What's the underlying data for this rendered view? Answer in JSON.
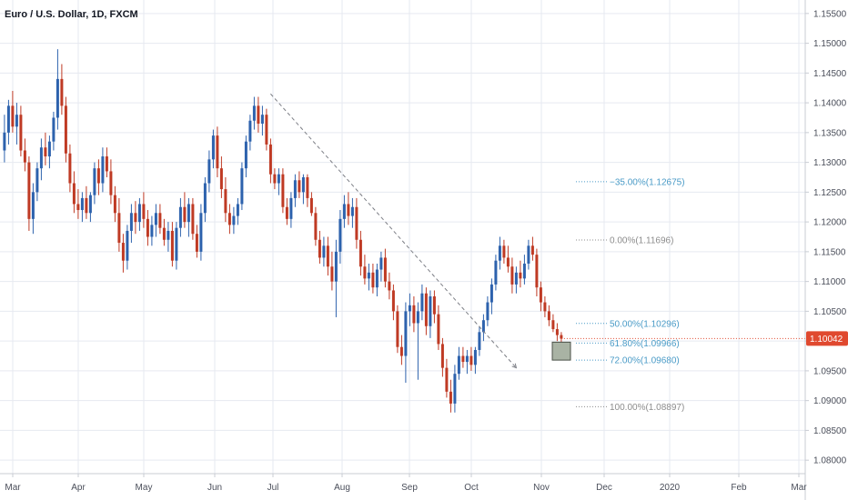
{
  "header": {
    "title": "Euro / U.S. Dollar, 1D, FXCM"
  },
  "price_badge": {
    "value": "1.10042",
    "color": "#e0492f"
  },
  "colors": {
    "up": "#2d62ad",
    "down": "#bf3a24",
    "fib_blue": "#4a9bc7",
    "fib_gray": "#8c8c8c",
    "box_fill": "#a9b3a4",
    "trendline": "#7d7f86"
  },
  "chart_data": {
    "type": "candlestick",
    "title": "Euro / U.S. Dollar, 1D, FXCM",
    "ylim": [
      1.0785,
      1.1565
    ],
    "y_ticks": [
      "1.15500",
      "1.15000",
      "1.14500",
      "1.14000",
      "1.13500",
      "1.13000",
      "1.12500",
      "1.12000",
      "1.11500",
      "1.11000",
      "1.10500",
      "1.10000",
      "1.09500",
      "1.09000",
      "1.08500",
      "1.08000"
    ],
    "x_ticks": [
      "Mar",
      "Apr",
      "May",
      "Jun",
      "Jul",
      "Aug",
      "Sep",
      "Oct",
      "Nov",
      "Dec",
      "2020",
      "Feb",
      "Mar"
    ],
    "grid": true,
    "last_price": 1.10042,
    "ohlc": [
      {
        "t": 1,
        "o": 1.132,
        "h": 1.138,
        "l": 1.13,
        "c": 1.135
      },
      {
        "t": 2,
        "o": 1.135,
        "h": 1.1405,
        "l": 1.133,
        "c": 1.1395
      },
      {
        "t": 3,
        "o": 1.1395,
        "h": 1.142,
        "l": 1.135,
        "c": 1.136
      },
      {
        "t": 4,
        "o": 1.136,
        "h": 1.14,
        "l": 1.133,
        "c": 1.138
      },
      {
        "t": 5,
        "o": 1.138,
        "h": 1.1395,
        "l": 1.131,
        "c": 1.132
      },
      {
        "t": 6,
        "o": 1.132,
        "h": 1.134,
        "l": 1.1285,
        "c": 1.13
      },
      {
        "t": 7,
        "o": 1.13,
        "h": 1.131,
        "l": 1.1185,
        "c": 1.1205
      },
      {
        "t": 8,
        "o": 1.1205,
        "h": 1.1265,
        "l": 1.118,
        "c": 1.125
      },
      {
        "t": 9,
        "o": 1.125,
        "h": 1.13,
        "l": 1.1235,
        "c": 1.129
      },
      {
        "t": 10,
        "o": 1.129,
        "h": 1.134,
        "l": 1.127,
        "c": 1.1325
      },
      {
        "t": 11,
        "o": 1.1325,
        "h": 1.135,
        "l": 1.1295,
        "c": 1.131
      },
      {
        "t": 12,
        "o": 1.131,
        "h": 1.1345,
        "l": 1.129,
        "c": 1.1335
      },
      {
        "t": 13,
        "o": 1.1335,
        "h": 1.1385,
        "l": 1.132,
        "c": 1.1375
      },
      {
        "t": 14,
        "o": 1.1375,
        "h": 1.149,
        "l": 1.1355,
        "c": 1.144
      },
      {
        "t": 15,
        "o": 1.144,
        "h": 1.1465,
        "l": 1.138,
        "c": 1.1395
      },
      {
        "t": 16,
        "o": 1.1395,
        "h": 1.141,
        "l": 1.13,
        "c": 1.1315
      },
      {
        "t": 17,
        "o": 1.1315,
        "h": 1.133,
        "l": 1.125,
        "c": 1.1265
      },
      {
        "t": 18,
        "o": 1.1265,
        "h": 1.1285,
        "l": 1.1215,
        "c": 1.123
      },
      {
        "t": 19,
        "o": 1.123,
        "h": 1.1255,
        "l": 1.1205,
        "c": 1.122
      },
      {
        "t": 20,
        "o": 1.122,
        "h": 1.125,
        "l": 1.12,
        "c": 1.124
      },
      {
        "t": 21,
        "o": 1.124,
        "h": 1.126,
        "l": 1.1205,
        "c": 1.1215
      },
      {
        "t": 22,
        "o": 1.1215,
        "h": 1.125,
        "l": 1.12,
        "c": 1.1245
      },
      {
        "t": 23,
        "o": 1.1245,
        "h": 1.13,
        "l": 1.123,
        "c": 1.129
      },
      {
        "t": 24,
        "o": 1.129,
        "h": 1.1305,
        "l": 1.1245,
        "c": 1.1265
      },
      {
        "t": 25,
        "o": 1.1265,
        "h": 1.1325,
        "l": 1.125,
        "c": 1.131
      },
      {
        "t": 26,
        "o": 1.131,
        "h": 1.1325,
        "l": 1.1275,
        "c": 1.1285
      },
      {
        "t": 27,
        "o": 1.1285,
        "h": 1.1305,
        "l": 1.123,
        "c": 1.1245
      },
      {
        "t": 28,
        "o": 1.1245,
        "h": 1.126,
        "l": 1.12,
        "c": 1.1215
      },
      {
        "t": 29,
        "o": 1.1215,
        "h": 1.124,
        "l": 1.115,
        "c": 1.1165
      },
      {
        "t": 30,
        "o": 1.1165,
        "h": 1.118,
        "l": 1.1115,
        "c": 1.1135
      },
      {
        "t": 31,
        "o": 1.1135,
        "h": 1.1195,
        "l": 1.112,
        "c": 1.1185
      },
      {
        "t": 32,
        "o": 1.1185,
        "h": 1.123,
        "l": 1.1165,
        "c": 1.1215
      },
      {
        "t": 33,
        "o": 1.1215,
        "h": 1.1235,
        "l": 1.118,
        "c": 1.12
      },
      {
        "t": 34,
        "o": 1.12,
        "h": 1.124,
        "l": 1.1185,
        "c": 1.123
      },
      {
        "t": 35,
        "o": 1.123,
        "h": 1.125,
        "l": 1.119,
        "c": 1.1205
      },
      {
        "t": 36,
        "o": 1.1205,
        "h": 1.122,
        "l": 1.116,
        "c": 1.1175
      },
      {
        "t": 37,
        "o": 1.1175,
        "h": 1.121,
        "l": 1.116,
        "c": 1.1195
      },
      {
        "t": 38,
        "o": 1.1195,
        "h": 1.123,
        "l": 1.1175,
        "c": 1.1215
      },
      {
        "t": 39,
        "o": 1.1215,
        "h": 1.123,
        "l": 1.118,
        "c": 1.119
      },
      {
        "t": 40,
        "o": 1.119,
        "h": 1.1205,
        "l": 1.116,
        "c": 1.117
      },
      {
        "t": 41,
        "o": 1.117,
        "h": 1.12,
        "l": 1.115,
        "c": 1.1185
      },
      {
        "t": 42,
        "o": 1.1185,
        "h": 1.12,
        "l": 1.1125,
        "c": 1.1135
      },
      {
        "t": 43,
        "o": 1.1135,
        "h": 1.12,
        "l": 1.112,
        "c": 1.119
      },
      {
        "t": 44,
        "o": 1.119,
        "h": 1.124,
        "l": 1.1175,
        "c": 1.1225
      },
      {
        "t": 45,
        "o": 1.1225,
        "h": 1.125,
        "l": 1.119,
        "c": 1.12
      },
      {
        "t": 46,
        "o": 1.12,
        "h": 1.124,
        "l": 1.1175,
        "c": 1.123
      },
      {
        "t": 47,
        "o": 1.123,
        "h": 1.124,
        "l": 1.117,
        "c": 1.118
      },
      {
        "t": 48,
        "o": 1.118,
        "h": 1.1195,
        "l": 1.114,
        "c": 1.115
      },
      {
        "t": 49,
        "o": 1.115,
        "h": 1.123,
        "l": 1.1135,
        "c": 1.1215
      },
      {
        "t": 50,
        "o": 1.1215,
        "h": 1.1275,
        "l": 1.12,
        "c": 1.1265
      },
      {
        "t": 51,
        "o": 1.1265,
        "h": 1.132,
        "l": 1.125,
        "c": 1.1305
      },
      {
        "t": 52,
        "o": 1.1305,
        "h": 1.1355,
        "l": 1.129,
        "c": 1.1345
      },
      {
        "t": 53,
        "o": 1.1345,
        "h": 1.136,
        "l": 1.1275,
        "c": 1.129
      },
      {
        "t": 54,
        "o": 1.129,
        "h": 1.131,
        "l": 1.124,
        "c": 1.1255
      },
      {
        "t": 55,
        "o": 1.1255,
        "h": 1.1275,
        "l": 1.12,
        "c": 1.1215
      },
      {
        "t": 56,
        "o": 1.1215,
        "h": 1.123,
        "l": 1.118,
        "c": 1.1195
      },
      {
        "t": 57,
        "o": 1.1195,
        "h": 1.1225,
        "l": 1.118,
        "c": 1.121
      },
      {
        "t": 58,
        "o": 1.121,
        "h": 1.124,
        "l": 1.1195,
        "c": 1.123
      },
      {
        "t": 59,
        "o": 1.123,
        "h": 1.13,
        "l": 1.122,
        "c": 1.129
      },
      {
        "t": 60,
        "o": 1.129,
        "h": 1.1345,
        "l": 1.1275,
        "c": 1.1335
      },
      {
        "t": 61,
        "o": 1.1335,
        "h": 1.138,
        "l": 1.132,
        "c": 1.137
      },
      {
        "t": 62,
        "o": 1.137,
        "h": 1.141,
        "l": 1.1355,
        "c": 1.1395
      },
      {
        "t": 63,
        "o": 1.1395,
        "h": 1.141,
        "l": 1.135,
        "c": 1.1365
      },
      {
        "t": 64,
        "o": 1.1365,
        "h": 1.1395,
        "l": 1.1345,
        "c": 1.138
      },
      {
        "t": 65,
        "o": 1.138,
        "h": 1.139,
        "l": 1.132,
        "c": 1.133
      },
      {
        "t": 66,
        "o": 1.133,
        "h": 1.134,
        "l": 1.1265,
        "c": 1.128
      },
      {
        "t": 67,
        "o": 1.128,
        "h": 1.129,
        "l": 1.1255,
        "c": 1.1265
      },
      {
        "t": 68,
        "o": 1.1265,
        "h": 1.129,
        "l": 1.1245,
        "c": 1.128
      },
      {
        "t": 69,
        "o": 1.128,
        "h": 1.129,
        "l": 1.1215,
        "c": 1.1225
      },
      {
        "t": 70,
        "o": 1.1225,
        "h": 1.124,
        "l": 1.1195,
        "c": 1.1205
      },
      {
        "t": 71,
        "o": 1.1205,
        "h": 1.125,
        "l": 1.119,
        "c": 1.124
      },
      {
        "t": 72,
        "o": 1.124,
        "h": 1.128,
        "l": 1.1225,
        "c": 1.127
      },
      {
        "t": 73,
        "o": 1.127,
        "h": 1.1285,
        "l": 1.124,
        "c": 1.125
      },
      {
        "t": 74,
        "o": 1.125,
        "h": 1.128,
        "l": 1.123,
        "c": 1.1275
      },
      {
        "t": 75,
        "o": 1.1275,
        "h": 1.128,
        "l": 1.1225,
        "c": 1.124
      },
      {
        "t": 76,
        "o": 1.124,
        "h": 1.125,
        "l": 1.121,
        "c": 1.1215
      },
      {
        "t": 77,
        "o": 1.1215,
        "h": 1.1225,
        "l": 1.116,
        "c": 1.117
      },
      {
        "t": 78,
        "o": 1.117,
        "h": 1.1185,
        "l": 1.113,
        "c": 1.114
      },
      {
        "t": 79,
        "o": 1.114,
        "h": 1.1175,
        "l": 1.1125,
        "c": 1.116
      },
      {
        "t": 80,
        "o": 1.116,
        "h": 1.1175,
        "l": 1.111,
        "c": 1.1125
      },
      {
        "t": 81,
        "o": 1.1125,
        "h": 1.115,
        "l": 1.1085,
        "c": 1.11
      },
      {
        "t": 82,
        "o": 1.11,
        "h": 1.117,
        "l": 1.104,
        "c": 1.115
      },
      {
        "t": 83,
        "o": 1.115,
        "h": 1.122,
        "l": 1.113,
        "c": 1.1205
      },
      {
        "t": 84,
        "o": 1.1205,
        "h": 1.1245,
        "l": 1.119,
        "c": 1.123
      },
      {
        "t": 85,
        "o": 1.123,
        "h": 1.125,
        "l": 1.1195,
        "c": 1.121
      },
      {
        "t": 86,
        "o": 1.121,
        "h": 1.124,
        "l": 1.119,
        "c": 1.1225
      },
      {
        "t": 87,
        "o": 1.1225,
        "h": 1.124,
        "l": 1.1155,
        "c": 1.117
      },
      {
        "t": 88,
        "o": 1.117,
        "h": 1.1185,
        "l": 1.111,
        "c": 1.1125
      },
      {
        "t": 89,
        "o": 1.1125,
        "h": 1.1145,
        "l": 1.1095,
        "c": 1.1105
      },
      {
        "t": 90,
        "o": 1.1105,
        "h": 1.113,
        "l": 1.1085,
        "c": 1.1115
      },
      {
        "t": 91,
        "o": 1.1115,
        "h": 1.113,
        "l": 1.108,
        "c": 1.109
      },
      {
        "t": 92,
        "o": 1.109,
        "h": 1.113,
        "l": 1.1075,
        "c": 1.112
      },
      {
        "t": 93,
        "o": 1.112,
        "h": 1.115,
        "l": 1.11,
        "c": 1.114
      },
      {
        "t": 94,
        "o": 1.114,
        "h": 1.1155,
        "l": 1.109,
        "c": 1.11
      },
      {
        "t": 95,
        "o": 1.11,
        "h": 1.1115,
        "l": 1.107,
        "c": 1.1085
      },
      {
        "t": 96,
        "o": 1.1085,
        "h": 1.1095,
        "l": 1.1035,
        "c": 1.105
      },
      {
        "t": 97,
        "o": 1.105,
        "h": 1.106,
        "l": 1.098,
        "c": 1.099
      },
      {
        "t": 98,
        "o": 1.099,
        "h": 1.101,
        "l": 1.096,
        "c": 1.0975
      },
      {
        "t": 99,
        "o": 1.0975,
        "h": 1.1065,
        "l": 1.093,
        "c": 1.105
      },
      {
        "t": 100,
        "o": 1.105,
        "h": 1.108,
        "l": 1.1025,
        "c": 1.106
      },
      {
        "t": 101,
        "o": 1.106,
        "h": 1.1075,
        "l": 1.1015,
        "c": 1.103
      },
      {
        "t": 102,
        "o": 1.103,
        "h": 1.1065,
        "l": 1.0935,
        "c": 1.105
      },
      {
        "t": 103,
        "o": 1.105,
        "h": 1.1095,
        "l": 1.1035,
        "c": 1.108
      },
      {
        "t": 104,
        "o": 1.108,
        "h": 1.109,
        "l": 1.101,
        "c": 1.1025
      },
      {
        "t": 105,
        "o": 1.1025,
        "h": 1.1085,
        "l": 1.1005,
        "c": 1.1075
      },
      {
        "t": 106,
        "o": 1.1075,
        "h": 1.1085,
        "l": 1.103,
        "c": 1.1045
      },
      {
        "t": 107,
        "o": 1.1045,
        "h": 1.106,
        "l": 1.0985,
        "c": 1.0995
      },
      {
        "t": 108,
        "o": 1.0995,
        "h": 1.1005,
        "l": 1.094,
        "c": 1.0955
      },
      {
        "t": 109,
        "o": 1.0955,
        "h": 1.097,
        "l": 1.0905,
        "c": 1.0915
      },
      {
        "t": 110,
        "o": 1.0915,
        "h": 1.0935,
        "l": 1.088,
        "c": 1.0895
      },
      {
        "t": 111,
        "o": 1.0895,
        "h": 1.096,
        "l": 1.088,
        "c": 1.0945
      },
      {
        "t": 112,
        "o": 1.0945,
        "h": 1.099,
        "l": 1.0935,
        "c": 1.0975
      },
      {
        "t": 113,
        "o": 1.0975,
        "h": 1.099,
        "l": 1.0955,
        "c": 1.0965
      },
      {
        "t": 114,
        "o": 1.0965,
        "h": 1.0985,
        "l": 1.0945,
        "c": 1.0975
      },
      {
        "t": 115,
        "o": 1.0975,
        "h": 1.099,
        "l": 1.095,
        "c": 1.096
      },
      {
        "t": 116,
        "o": 1.096,
        "h": 1.099,
        "l": 1.0945,
        "c": 1.0985
      },
      {
        "t": 117,
        "o": 1.0985,
        "h": 1.1025,
        "l": 1.0975,
        "c": 1.1015
      },
      {
        "t": 118,
        "o": 1.1015,
        "h": 1.1045,
        "l": 1.1,
        "c": 1.1035
      },
      {
        "t": 119,
        "o": 1.1035,
        "h": 1.1075,
        "l": 1.1025,
        "c": 1.1065
      },
      {
        "t": 120,
        "o": 1.1065,
        "h": 1.1105,
        "l": 1.1045,
        "c": 1.1095
      },
      {
        "t": 121,
        "o": 1.1095,
        "h": 1.1145,
        "l": 1.1085,
        "c": 1.1135
      },
      {
        "t": 122,
        "o": 1.1135,
        "h": 1.1175,
        "l": 1.112,
        "c": 1.116
      },
      {
        "t": 123,
        "o": 1.116,
        "h": 1.117,
        "l": 1.113,
        "c": 1.114
      },
      {
        "t": 124,
        "o": 1.114,
        "h": 1.116,
        "l": 1.1115,
        "c": 1.1125
      },
      {
        "t": 125,
        "o": 1.1125,
        "h": 1.114,
        "l": 1.108,
        "c": 1.1095
      },
      {
        "t": 126,
        "o": 1.1095,
        "h": 1.1125,
        "l": 1.108,
        "c": 1.1115
      },
      {
        "t": 127,
        "o": 1.1115,
        "h": 1.1135,
        "l": 1.109,
        "c": 1.1105
      },
      {
        "t": 128,
        "o": 1.1105,
        "h": 1.1145,
        "l": 1.1095,
        "c": 1.113
      },
      {
        "t": 129,
        "o": 1.113,
        "h": 1.117,
        "l": 1.112,
        "c": 1.116
      },
      {
        "t": 130,
        "o": 1.116,
        "h": 1.1175,
        "l": 1.1135,
        "c": 1.1145
      },
      {
        "t": 131,
        "o": 1.1145,
        "h": 1.1155,
        "l": 1.1075,
        "c": 1.109
      },
      {
        "t": 132,
        "o": 1.109,
        "h": 1.11,
        "l": 1.105,
        "c": 1.1065
      },
      {
        "t": 133,
        "o": 1.1065,
        "h": 1.1075,
        "l": 1.104,
        "c": 1.105
      },
      {
        "t": 134,
        "o": 1.105,
        "h": 1.106,
        "l": 1.1025,
        "c": 1.1035
      },
      {
        "t": 135,
        "o": 1.1035,
        "h": 1.1045,
        "l": 1.1015,
        "c": 1.102
      },
      {
        "t": 136,
        "o": 1.102,
        "h": 1.103,
        "l": 1.1,
        "c": 1.101
      },
      {
        "t": 137,
        "o": 1.101,
        "h": 1.1015,
        "l": 1.0995,
        "c": 1.1004
      }
    ],
    "trendline": {
      "from": {
        "t": 66,
        "v": 1.1415
      },
      "to": {
        "t": 126,
        "v": 1.0955
      }
    },
    "fib_levels": [
      {
        "label": "−35.00%(1.12675)",
        "value": 1.12675,
        "color": "fib_blue"
      },
      {
        "label": "0.00%(1.11696)",
        "value": 1.11696,
        "color": "fib_gray"
      },
      {
        "label": "50.00%(1.10296)",
        "value": 1.10296,
        "color": "fib_blue"
      },
      {
        "label": "61.80%(1.09966)",
        "value": 1.09966,
        "color": "fib_blue"
      },
      {
        "label": "72.00%(1.09680)",
        "value": 1.0968,
        "color": "fib_blue"
      },
      {
        "label": "100.00%(1.08897)",
        "value": 1.08897,
        "color": "fib_gray"
      }
    ],
    "zone": {
      "top": 1.09966,
      "bottom": 1.0968
    }
  }
}
